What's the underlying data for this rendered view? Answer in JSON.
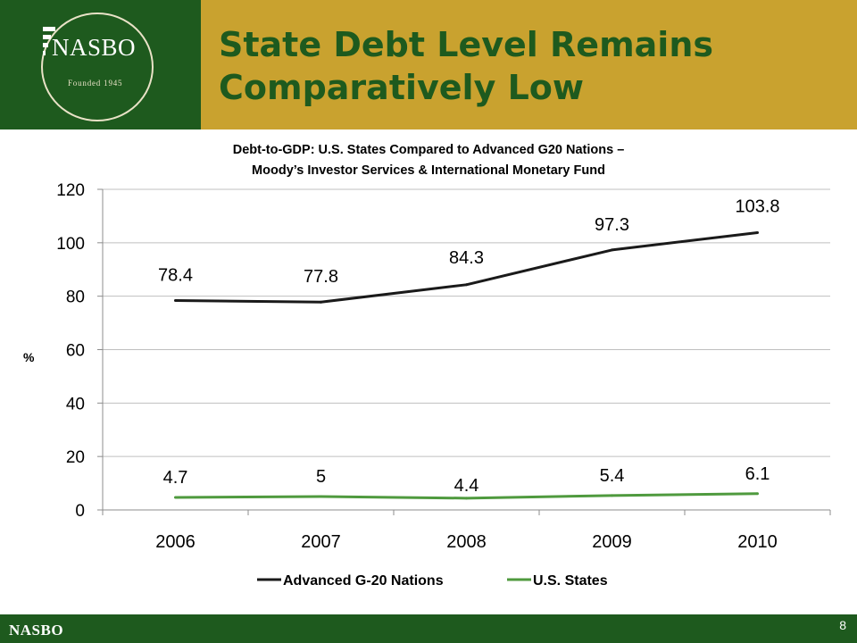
{
  "header": {
    "title": "State Debt Level Remains Comparatively Low",
    "logo": {
      "wordmark": "NASBO",
      "founded": "Founded 1945",
      "icon": "nasbo-emblem"
    }
  },
  "footer": {
    "brand": "NASBO",
    "page_number": "8"
  },
  "colors": {
    "brand_green": "#1e5a1e",
    "gold": "#c9a22f",
    "g20_line": "#1a1a1a",
    "states_line": "#4f9a3e"
  },
  "chart_data": {
    "type": "line",
    "title_line1": "Debt-to-GDP: U.S. States Compared to Advanced G20 Nations –",
    "title_line2": "Moody’s Investor Services & International Monetary Fund",
    "ylabel": "%",
    "xlabel": "",
    "categories": [
      "2006",
      "2007",
      "2008",
      "2009",
      "2010"
    ],
    "ylim": [
      0,
      120
    ],
    "yticks": [
      0,
      20,
      40,
      60,
      80,
      100,
      120
    ],
    "grid": true,
    "legend_position": "bottom",
    "series": [
      {
        "name": "Advanced G-20 Nations",
        "values": [
          78.4,
          77.8,
          84.3,
          97.3,
          103.8
        ],
        "labels": [
          "78.4",
          "77.8",
          "84.3",
          "97.3",
          "103.8"
        ],
        "color": "#1a1a1a"
      },
      {
        "name": "U.S. States",
        "values": [
          4.7,
          5,
          4.4,
          5.4,
          6.1
        ],
        "labels": [
          "4.7",
          "5",
          "4.4",
          "5.4",
          "6.1"
        ],
        "color": "#4f9a3e"
      }
    ]
  }
}
